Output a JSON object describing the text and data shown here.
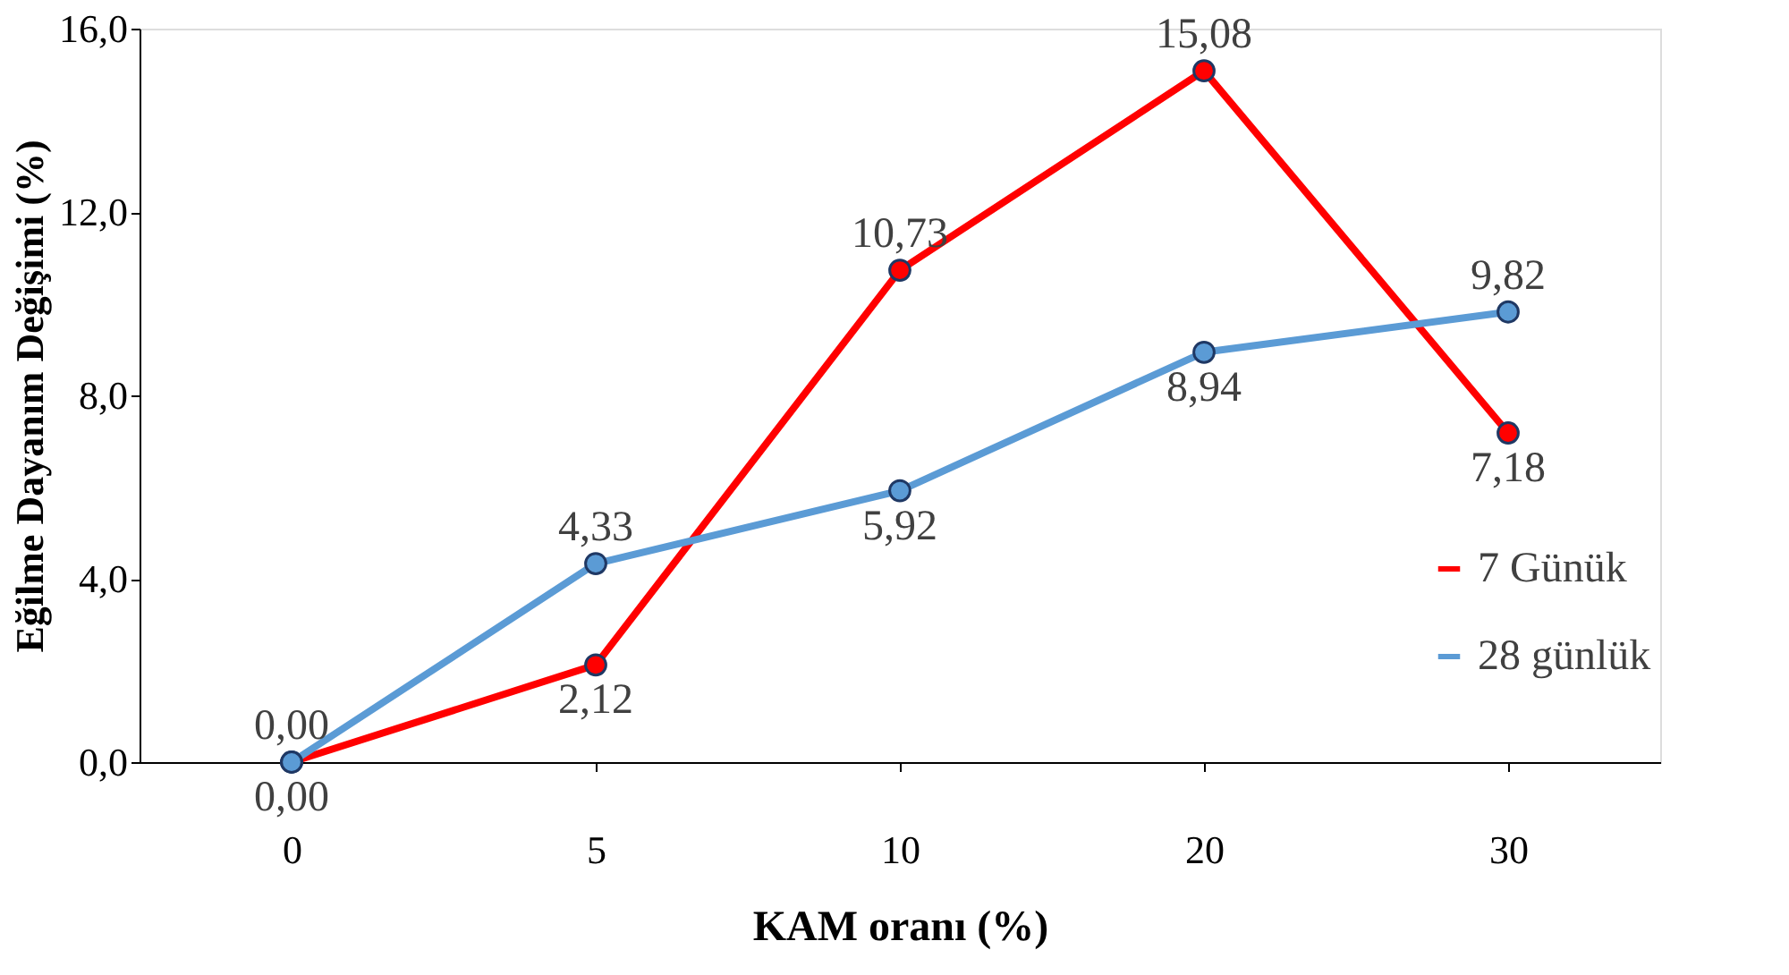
{
  "chart_data": {
    "type": "line",
    "xlabel": "KAM oranı (%)",
    "ylabel": "Eğilme Dayanım Değişimi (%)",
    "categories": [
      "0",
      "5",
      "10",
      "20",
      "30"
    ],
    "ylim": [
      0,
      16
    ],
    "yticks": [
      {
        "value": 0,
        "label": "0,0"
      },
      {
        "value": 4,
        "label": "4,0"
      },
      {
        "value": 8,
        "label": "8,0"
      },
      {
        "value": 12,
        "label": "12,0"
      },
      {
        "value": 16,
        "label": "16,0"
      }
    ],
    "series": [
      {
        "name": "7 Günük",
        "color": "#ff0000",
        "values": [
          0.0,
          2.12,
          10.73,
          15.08,
          7.18
        ],
        "value_labels": [
          "0,00",
          "2,12",
          "10,73",
          "15,08",
          "7,18"
        ]
      },
      {
        "name": "28 günlük",
        "color": "#5b9bd5",
        "values": [
          0.0,
          4.33,
          5.92,
          8.94,
          9.82
        ],
        "value_labels": [
          "0,00",
          "4,33",
          "5,92",
          "8,94",
          "9,82"
        ]
      }
    ],
    "marker": "circle",
    "line_style": "solid",
    "grid": false,
    "legend": "right"
  }
}
